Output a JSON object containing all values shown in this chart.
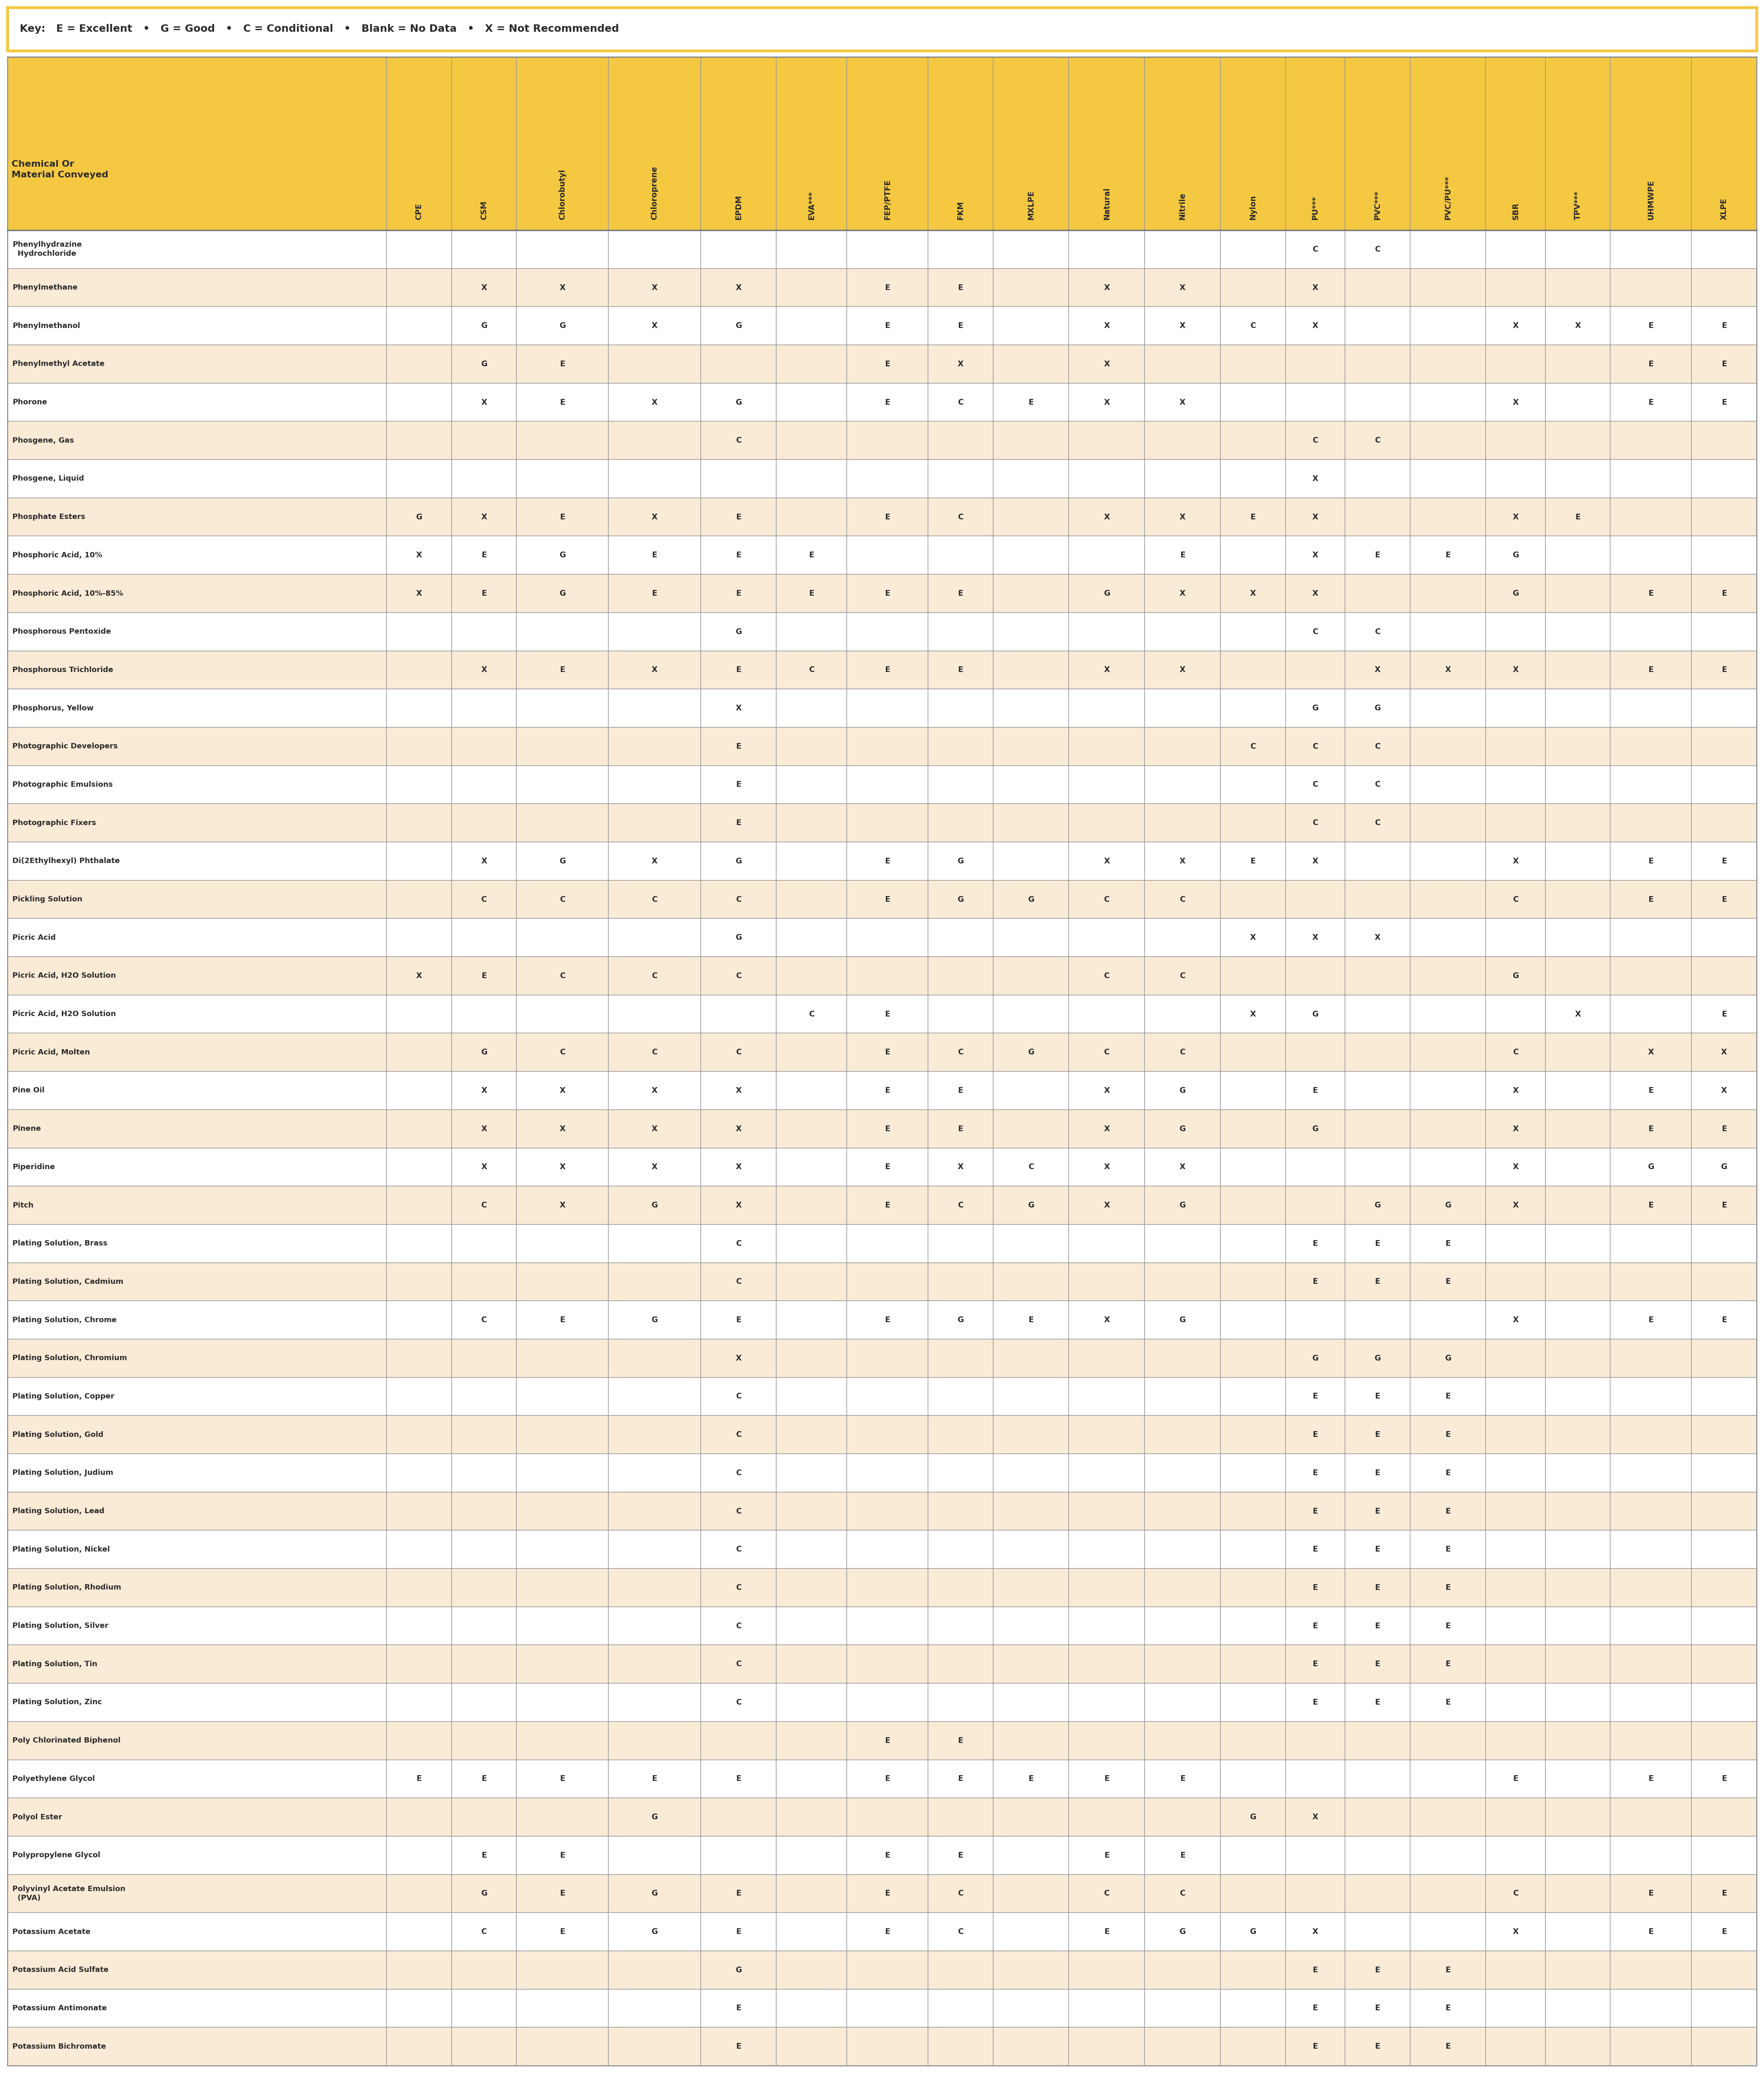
{
  "key_text": "Key:   E = Excellent   •   G = Good   •   C = Conditional   •   Blank = No Data   •   X = Not Recommended",
  "header_label": "Chemical Or\nMaterial Conveyed",
  "columns": [
    "CPE",
    "CSM",
    "Chlorobutyl",
    "Chloroprene",
    "EPDM",
    "EVA***",
    "FEP/PTFE",
    "FKM",
    "MXLPE",
    "Natural",
    "Nitrile",
    "Nylon",
    "PU***",
    "PVC***",
    "PVC/PU***",
    "SBR",
    "TPV***",
    "UHMWPE",
    "XLPE"
  ],
  "rows": [
    [
      "Phenylhydrazine\n  Hydrochloride",
      "",
      "",
      "",
      "",
      "",
      "",
      "",
      "",
      "",
      "",
      "",
      "",
      "C",
      "C",
      "",
      "",
      "",
      ""
    ],
    [
      "Phenylmethane",
      "",
      "X",
      "X",
      "X",
      "X",
      "",
      "E",
      "E",
      "",
      "X",
      "X",
      "",
      "X",
      "",
      "",
      "",
      "",
      ""
    ],
    [
      "Phenylmethanol",
      "",
      "G",
      "G",
      "X",
      "G",
      "",
      "E",
      "E",
      "",
      "X",
      "X",
      "C",
      "X",
      "",
      "",
      "X",
      "X",
      "E",
      "E"
    ],
    [
      "Phenylmethyl Acetate",
      "",
      "G",
      "E",
      "",
      "",
      "",
      "E",
      "X",
      "",
      "X",
      "",
      "",
      "",
      "",
      "",
      "",
      "",
      "E",
      "E"
    ],
    [
      "Phorone",
      "",
      "X",
      "E",
      "X",
      "G",
      "",
      "E",
      "C",
      "E",
      "X",
      "X",
      "",
      "",
      "",
      "",
      "X",
      "",
      "E",
      "E"
    ],
    [
      "Phosgene, Gas",
      "",
      "",
      "",
      "",
      "C",
      "",
      "",
      "",
      "",
      "",
      "",
      "",
      "C",
      "C",
      "",
      "",
      "",
      ""
    ],
    [
      "Phosgene, Liquid",
      "",
      "",
      "",
      "",
      "",
      "",
      "",
      "",
      "",
      "",
      "",
      "",
      "X",
      "",
      "",
      "",
      "",
      ""
    ],
    [
      "Phosphate Esters",
      "G",
      "X",
      "E",
      "X",
      "E",
      "",
      "E",
      "C",
      "",
      "X",
      "X",
      "E",
      "X",
      "",
      "",
      "X",
      "E",
      "",
      ""
    ],
    [
      "Phosphoric Acid, 10%",
      "X",
      "E",
      "G",
      "E",
      "E",
      "E",
      "",
      "",
      "",
      "",
      "E",
      "",
      "X",
      "E",
      "E",
      "G",
      "",
      "",
      ""
    ],
    [
      "Phosphoric Acid, 10%-85%",
      "X",
      "E",
      "G",
      "E",
      "E",
      "E",
      "E",
      "E",
      "",
      "G",
      "X",
      "X",
      "X",
      "",
      "",
      "G",
      "",
      "E",
      "E"
    ],
    [
      "Phosphorous Pentoxide",
      "",
      "",
      "",
      "",
      "G",
      "",
      "",
      "",
      "",
      "",
      "",
      "",
      "C",
      "C",
      "",
      "",
      "",
      "",
      ""
    ],
    [
      "Phosphorous Trichloride",
      "",
      "X",
      "E",
      "X",
      "E",
      "C",
      "E",
      "E",
      "",
      "X",
      "X",
      "",
      "",
      "X",
      "X",
      "X",
      "",
      "E",
      "E"
    ],
    [
      "Phosphorus, Yellow",
      "",
      "",
      "",
      "",
      "X",
      "",
      "",
      "",
      "",
      "",
      "",
      "",
      "G",
      "G",
      "",
      "",
      "",
      "",
      ""
    ],
    [
      "Photographic Developers",
      "",
      "",
      "",
      "",
      "E",
      "",
      "",
      "",
      "",
      "",
      "",
      "C",
      "C",
      "C",
      "",
      "",
      "",
      "",
      ""
    ],
    [
      "Photographic Emulsions",
      "",
      "",
      "",
      "",
      "E",
      "",
      "",
      "",
      "",
      "",
      "",
      "",
      "C",
      "C",
      "",
      "",
      "",
      "",
      ""
    ],
    [
      "Photographic Fixers",
      "",
      "",
      "",
      "",
      "E",
      "",
      "",
      "",
      "",
      "",
      "",
      "",
      "C",
      "C",
      "",
      "",
      "",
      "",
      ""
    ],
    [
      "Di(2Ethylhexyl) Phthalate",
      "",
      "X",
      "G",
      "X",
      "G",
      "",
      "E",
      "G",
      "",
      "X",
      "X",
      "E",
      "X",
      "",
      "",
      "X",
      "",
      "E",
      "E"
    ],
    [
      "Pickling Solution",
      "",
      "C",
      "C",
      "C",
      "C",
      "",
      "E",
      "G",
      "G",
      "C",
      "C",
      "",
      "",
      "",
      "",
      "C",
      "",
      "E",
      "E"
    ],
    [
      "Picric Acid",
      "",
      "",
      "",
      "",
      "G",
      "",
      "",
      "",
      "",
      "",
      "",
      "X",
      "X",
      "X",
      "",
      "",
      "",
      "",
      ""
    ],
    [
      "Picric Acid, H2O Solution",
      "X",
      "E",
      "C",
      "C",
      "C",
      "",
      "",
      "",
      "",
      "C",
      "C",
      "",
      "",
      "",
      "",
      "G",
      "",
      "",
      ""
    ],
    [
      "Picric Acid, H2O Solution",
      "",
      "",
      "",
      "",
      "",
      "C",
      "E",
      "",
      "",
      "",
      "",
      "X",
      "G",
      "",
      "",
      "",
      "X",
      "",
      "E"
    ],
    [
      "Picric Acid, Molten",
      "",
      "G",
      "C",
      "C",
      "C",
      "",
      "E",
      "C",
      "G",
      "C",
      "C",
      "",
      "",
      "",
      "",
      "C",
      "",
      "X",
      "X"
    ],
    [
      "Pine Oil",
      "",
      "X",
      "X",
      "X",
      "X",
      "",
      "E",
      "E",
      "",
      "X",
      "G",
      "",
      "E",
      "",
      "",
      "X",
      "",
      "E",
      "X"
    ],
    [
      "Pinene",
      "",
      "X",
      "X",
      "X",
      "X",
      "",
      "E",
      "E",
      "",
      "X",
      "G",
      "",
      "G",
      "",
      "",
      "X",
      "",
      "E",
      "E"
    ],
    [
      "Piperidine",
      "",
      "X",
      "X",
      "X",
      "X",
      "",
      "E",
      "X",
      "C",
      "X",
      "X",
      "",
      "",
      "",
      "",
      "X",
      "",
      "G",
      "G"
    ],
    [
      "Pitch",
      "",
      "C",
      "X",
      "G",
      "X",
      "",
      "E",
      "C",
      "G",
      "X",
      "G",
      "",
      "",
      "G",
      "G",
      "X",
      "",
      "E",
      "E"
    ],
    [
      "Plating Solution, Brass",
      "",
      "",
      "",
      "",
      "C",
      "",
      "",
      "",
      "",
      "",
      "",
      "",
      "E",
      "E",
      "E",
      "",
      "",
      "",
      ""
    ],
    [
      "Plating Solution, Cadmium",
      "",
      "",
      "",
      "",
      "C",
      "",
      "",
      "",
      "",
      "",
      "",
      "",
      "E",
      "E",
      "E",
      "",
      "",
      "",
      ""
    ],
    [
      "Plating Solution, Chrome",
      "",
      "C",
      "E",
      "G",
      "E",
      "",
      "E",
      "G",
      "E",
      "X",
      "G",
      "",
      "",
      "",
      "",
      "X",
      "",
      "E",
      "E"
    ],
    [
      "Plating Solution, Chromium",
      "",
      "",
      "",
      "",
      "X",
      "",
      "",
      "",
      "",
      "",
      "",
      "",
      "G",
      "G",
      "G",
      "",
      "",
      "",
      ""
    ],
    [
      "Plating Solution, Copper",
      "",
      "",
      "",
      "",
      "C",
      "",
      "",
      "",
      "",
      "",
      "",
      "",
      "E",
      "E",
      "E",
      "",
      "",
      "",
      ""
    ],
    [
      "Plating Solution, Gold",
      "",
      "",
      "",
      "",
      "C",
      "",
      "",
      "",
      "",
      "",
      "",
      "",
      "E",
      "E",
      "E",
      "",
      "",
      "",
      ""
    ],
    [
      "Plating Solution, Judium",
      "",
      "",
      "",
      "",
      "C",
      "",
      "",
      "",
      "",
      "",
      "",
      "",
      "E",
      "E",
      "E",
      "",
      "",
      "",
      ""
    ],
    [
      "Plating Solution, Lead",
      "",
      "",
      "",
      "",
      "C",
      "",
      "",
      "",
      "",
      "",
      "",
      "",
      "E",
      "E",
      "E",
      "",
      "",
      "",
      ""
    ],
    [
      "Plating Solution, Nickel",
      "",
      "",
      "",
      "",
      "C",
      "",
      "",
      "",
      "",
      "",
      "",
      "",
      "E",
      "E",
      "E",
      "",
      "",
      "",
      ""
    ],
    [
      "Plating Solution, Rhodium",
      "",
      "",
      "",
      "",
      "C",
      "",
      "",
      "",
      "",
      "",
      "",
      "",
      "E",
      "E",
      "E",
      "",
      "",
      "",
      ""
    ],
    [
      "Plating Solution, Silver",
      "",
      "",
      "",
      "",
      "C",
      "",
      "",
      "",
      "",
      "",
      "",
      "",
      "E",
      "E",
      "E",
      "",
      "",
      "",
      ""
    ],
    [
      "Plating Solution, Tin",
      "",
      "",
      "",
      "",
      "C",
      "",
      "",
      "",
      "",
      "",
      "",
      "",
      "E",
      "E",
      "E",
      "",
      "",
      "",
      ""
    ],
    [
      "Plating Solution, Zinc",
      "",
      "",
      "",
      "",
      "C",
      "",
      "",
      "",
      "",
      "",
      "",
      "",
      "E",
      "E",
      "E",
      "",
      "",
      "",
      ""
    ],
    [
      "Poly Chlorinated Biphenol",
      "",
      "",
      "",
      "",
      "",
      "",
      "E",
      "E",
      "",
      "",
      "",
      "",
      "",
      "",
      "",
      "",
      "",
      "",
      ""
    ],
    [
      "Polyethylene Glycol",
      "E",
      "E",
      "E",
      "E",
      "E",
      "",
      "E",
      "E",
      "E",
      "E",
      "E",
      "",
      "",
      "",
      "",
      "E",
      "",
      "E",
      "E"
    ],
    [
      "Polyol Ester",
      "",
      "",
      "",
      "G",
      "",
      "",
      "",
      "",
      "",
      "",
      "",
      "G",
      "X",
      "",
      "",
      "",
      "",
      "",
      ""
    ],
    [
      "Polypropylene Glycol",
      "",
      "E",
      "E",
      "",
      "",
      "",
      "E",
      "E",
      "",
      "E",
      "E",
      "",
      "",
      "",
      "",
      "",
      "",
      "",
      ""
    ],
    [
      "Polyvinyl Acetate Emulsion\n  (PVA)",
      "",
      "G",
      "E",
      "G",
      "E",
      "",
      "E",
      "C",
      "",
      "C",
      "C",
      "",
      "",
      "",
      "",
      "C",
      "",
      "E",
      "E"
    ],
    [
      "Potassium Acetate",
      "",
      "C",
      "E",
      "G",
      "E",
      "",
      "E",
      "C",
      "",
      "E",
      "G",
      "G",
      "X",
      "",
      "",
      "X",
      "",
      "E",
      "E"
    ],
    [
      "Potassium Acid Sulfate",
      "",
      "",
      "",
      "",
      "G",
      "",
      "",
      "",
      "",
      "",
      "",
      "",
      "E",
      "E",
      "E",
      "",
      "",
      "",
      ""
    ],
    [
      "Potassium Antimonate",
      "",
      "",
      "",
      "",
      "E",
      "",
      "",
      "",
      "",
      "",
      "",
      "",
      "E",
      "E",
      "E",
      "",
      "",
      "",
      ""
    ],
    [
      "Potassium Bichromate",
      "",
      "",
      "",
      "",
      "E",
      "",
      "",
      "",
      "",
      "",
      "",
      "",
      "E",
      "E",
      "E",
      "",
      "",
      "",
      ""
    ]
  ],
  "bg_color_even": "#FFFFFF",
  "bg_color_odd": "#FAEBD7",
  "header_bg": "#F5C842",
  "key_bg": "#FFFFFF",
  "border_color": "#999999",
  "text_color": "#2B2B2B",
  "header_text_color": "#2B2B2B",
  "col_widths_ratios": [
    3.5,
    0.6,
    0.6,
    0.85,
    0.85,
    0.7,
    0.65,
    0.75,
    0.6,
    0.7,
    0.7,
    0.7,
    0.6,
    0.55,
    0.6,
    0.7,
    0.55,
    0.6,
    0.75,
    0.6
  ]
}
